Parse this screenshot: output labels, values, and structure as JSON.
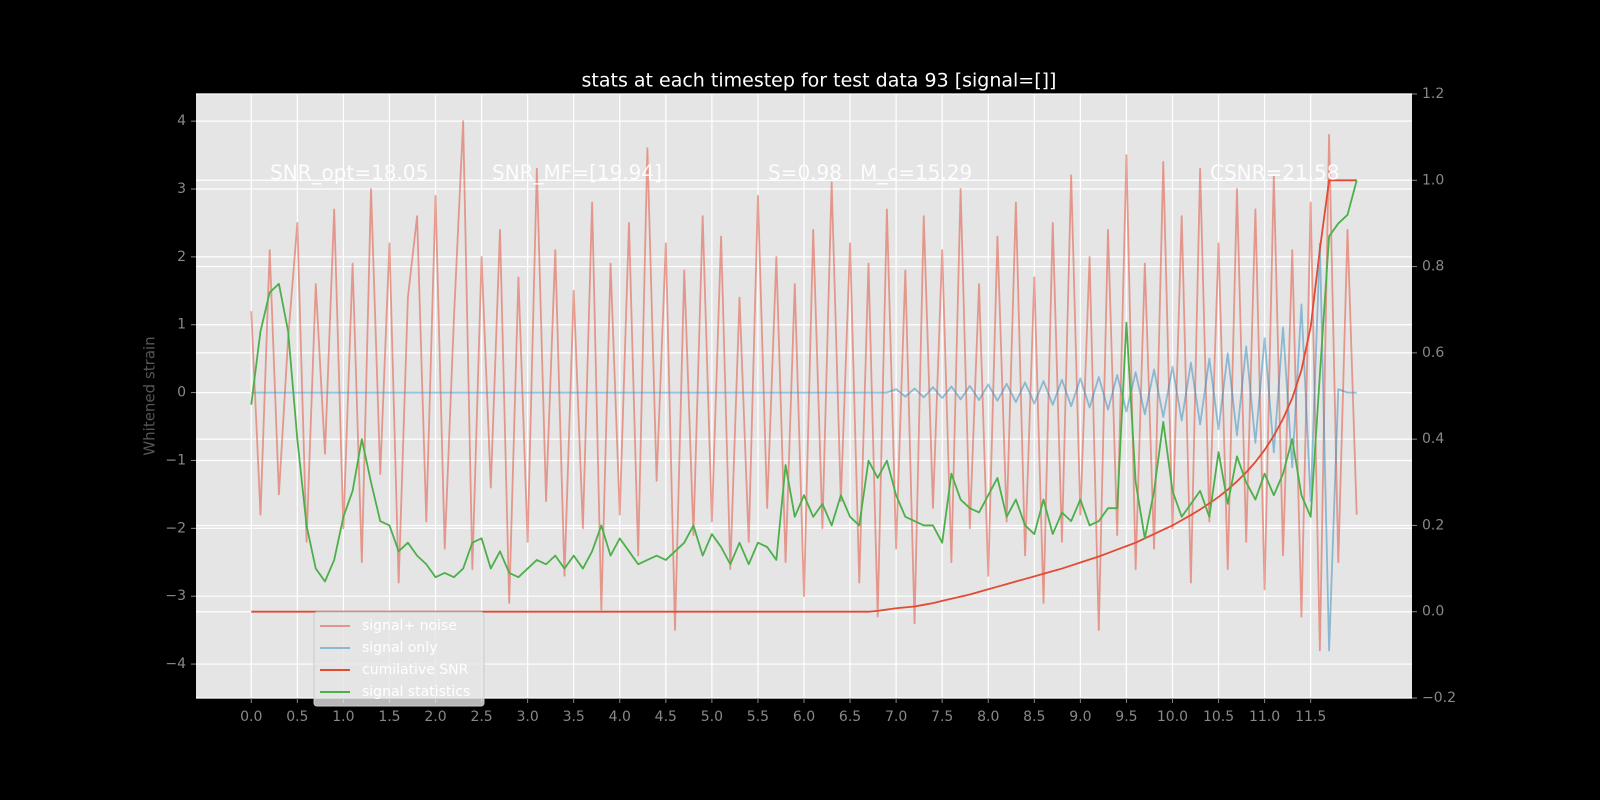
{
  "chart_data": {
    "type": "line",
    "title": "stats at each timestep for test data 93 [signal=[]]",
    "ylabel": "Whitened strain",
    "annotations": [
      "SNR_opt=18.05",
      "SNR_MF=[19.94]",
      "S=0.98",
      "M_c=15.29",
      "CSNR=21.58"
    ],
    "grid": true,
    "legend_loc": "lower left",
    "xlim": [
      -0.6,
      12.6
    ],
    "ylim": [
      -4.5,
      4.4
    ],
    "y2lim": [
      -0.2,
      1.2
    ],
    "xticks": [
      {
        "value": 0,
        "label": "0.0"
      },
      {
        "value": 0.5,
        "label": "0.5"
      },
      {
        "value": 1,
        "label": "1.0"
      },
      {
        "value": 1.5,
        "label": "1.5"
      },
      {
        "value": 2,
        "label": "2.0"
      },
      {
        "value": 2.5,
        "label": "2.5"
      },
      {
        "value": 3,
        "label": "3.0"
      },
      {
        "value": 3.5,
        "label": "3.5"
      },
      {
        "value": 4,
        "label": "4.0"
      },
      {
        "value": 4.5,
        "label": "4.5"
      },
      {
        "value": 5,
        "label": "5.0"
      },
      {
        "value": 5.5,
        "label": "5.5"
      },
      {
        "value": 6,
        "label": "6.0"
      },
      {
        "value": 6.5,
        "label": "6.5"
      },
      {
        "value": 7,
        "label": "7.0"
      },
      {
        "value": 7.5,
        "label": "7.5"
      },
      {
        "value": 8,
        "label": "8.0"
      },
      {
        "value": 8.5,
        "label": "8.5"
      },
      {
        "value": 9,
        "label": "9.0"
      },
      {
        "value": 9.5,
        "label": "9.5"
      },
      {
        "value": 10,
        "label": "10.0"
      },
      {
        "value": 10.5,
        "label": "10.5"
      },
      {
        "value": 11,
        "label": "11.0"
      },
      {
        "value": 11.5,
        "label": "11.5"
      }
    ],
    "yticks": [
      {
        "value": -4,
        "label": "−4"
      },
      {
        "value": -3,
        "label": "−3"
      },
      {
        "value": -2,
        "label": "−2"
      },
      {
        "value": -1,
        "label": "−1"
      },
      0,
      1,
      2,
      3,
      4
    ],
    "y2ticks": [
      {
        "value": -0.2,
        "label": "−0.2"
      },
      {
        "value": 0,
        "label": "0.0"
      },
      0.2,
      0.4,
      0.6,
      0.8,
      {
        "value": 1,
        "label": "1.0"
      },
      1.2
    ],
    "x": [
      0,
      0.1,
      0.2,
      0.3,
      0.4,
      0.5,
      0.6,
      0.7,
      0.8,
      0.9,
      1,
      1.1,
      1.2,
      1.3,
      1.4,
      1.5,
      1.6,
      1.7,
      1.8,
      1.9,
      2,
      2.1,
      2.2,
      2.3,
      2.4,
      2.5,
      2.6,
      2.7,
      2.8,
      2.9,
      3,
      3.1,
      3.2,
      3.3,
      3.4,
      3.5,
      3.6,
      3.7,
      3.8,
      3.9,
      4,
      4.1,
      4.2,
      4.3,
      4.4,
      4.5,
      4.6,
      4.7,
      4.8,
      4.9,
      5,
      5.1,
      5.2,
      5.3,
      5.4,
      5.5,
      5.6,
      5.7,
      5.8,
      5.9,
      6,
      6.1,
      6.2,
      6.3,
      6.4,
      6.5,
      6.6,
      6.7,
      6.8,
      6.9,
      7,
      7.1,
      7.2,
      7.3,
      7.4,
      7.5,
      7.6,
      7.7,
      7.8,
      7.9,
      8,
      8.1,
      8.2,
      8.3,
      8.4,
      8.5,
      8.6,
      8.7,
      8.8,
      8.9,
      9,
      9.1,
      9.2,
      9.3,
      9.4,
      9.5,
      9.6,
      9.7,
      9.8,
      9.9,
      10,
      10.1,
      10.2,
      10.3,
      10.4,
      10.5,
      10.6,
      10.7,
      10.8,
      10.9,
      11,
      11.1,
      11.2,
      11.3,
      11.4,
      11.5,
      11.6,
      11.7,
      11.8,
      11.9,
      12
    ],
    "series": [
      {
        "name": "signal+ noise",
        "color": "#e24a33",
        "opacity": 0.5,
        "values": [
          1.2,
          -1.8,
          2.1,
          -1.5,
          0.8,
          2.5,
          -2.2,
          1.6,
          -0.9,
          2.7,
          -2.0,
          1.9,
          -2.5,
          3.0,
          -1.2,
          2.2,
          -2.8,
          1.4,
          2.6,
          -1.9,
          2.9,
          -2.3,
          1.1,
          4.0,
          -2.6,
          2.0,
          -1.4,
          2.4,
          -3.1,
          1.7,
          -2.2,
          3.3,
          -1.6,
          2.1,
          -2.7,
          1.5,
          -2.0,
          2.8,
          -3.2,
          1.9,
          -1.8,
          2.5,
          -2.4,
          3.6,
          -1.3,
          2.2,
          -3.5,
          1.8,
          -2.1,
          2.6,
          -1.9,
          2.3,
          -2.6,
          1.4,
          -2.2,
          2.9,
          -1.7,
          2.0,
          -2.5,
          1.6,
          -3.0,
          2.4,
          -2.0,
          3.1,
          -1.6,
          2.2,
          -2.8,
          1.9,
          -3.3,
          2.7,
          -2.3,
          1.8,
          -3.4,
          2.6,
          -1.7,
          2.1,
          -2.5,
          3.0,
          -2.0,
          1.6,
          -2.7,
          2.3,
          -1.9,
          2.8,
          -2.4,
          1.7,
          -3.1,
          2.5,
          -2.2,
          3.2,
          -1.8,
          2.0,
          -3.5,
          2.4,
          -2.1,
          3.5,
          -2.6,
          1.9,
          -2.3,
          3.4,
          -2.0,
          2.6,
          -2.8,
          3.3,
          -1.9,
          2.2,
          -2.6,
          3.0,
          -2.2,
          2.7,
          -2.9,
          3.2,
          -2.4,
          2.1,
          -3.3,
          2.8,
          -3.8,
          3.8,
          -2.5,
          2.4,
          -1.8
        ]
      },
      {
        "name": "signal only",
        "color": "#348abd",
        "opacity": 0.5,
        "values": [
          0,
          0,
          0,
          0,
          0,
          0,
          0,
          0,
          0,
          0,
          0,
          0,
          0,
          0,
          0,
          0,
          0,
          0,
          0,
          0,
          0,
          0,
          0,
          0,
          0,
          0,
          0,
          0,
          0,
          0,
          0,
          0,
          0,
          0,
          0,
          0,
          0,
          0,
          0,
          0,
          0,
          0,
          0,
          0,
          0,
          0,
          0,
          0,
          0,
          0,
          0,
          0,
          0,
          0,
          0,
          0,
          0,
          0,
          0,
          0,
          0,
          0,
          0,
          0,
          0,
          0,
          0,
          0,
          0,
          0,
          0.05,
          -0.06,
          0.06,
          -0.07,
          0.08,
          -0.08,
          0.09,
          -0.1,
          0.1,
          -0.11,
          0.12,
          -0.12,
          0.13,
          -0.14,
          0.15,
          -0.16,
          0.17,
          -0.18,
          0.19,
          -0.2,
          0.21,
          -0.22,
          0.23,
          -0.25,
          0.26,
          -0.28,
          0.3,
          -0.32,
          0.34,
          -0.36,
          0.38,
          -0.41,
          0.44,
          -0.47,
          0.5,
          -0.54,
          0.58,
          -0.63,
          0.68,
          -0.74,
          0.8,
          -0.88,
          0.96,
          -1.1,
          1.3,
          -1.6,
          2.2,
          -3.8,
          0.05,
          0,
          0
        ]
      },
      {
        "name": "cumilative SNR",
        "color": "#e24a33",
        "opacity": 1,
        "axis": "y2",
        "values": [
          0,
          0,
          0,
          0,
          0,
          0,
          0,
          0,
          0,
          0,
          0,
          0,
          0,
          0,
          0,
          0,
          0,
          0,
          0,
          0,
          0,
          0,
          0,
          0,
          0,
          0,
          0,
          0,
          0,
          0,
          0,
          0,
          0,
          0,
          0,
          0,
          0,
          0,
          0,
          0,
          0,
          0,
          0,
          0,
          0,
          0,
          0,
          0,
          0,
          0,
          0,
          0,
          0,
          0,
          0,
          0,
          0,
          0,
          0,
          0,
          0,
          0,
          0,
          0,
          0,
          0,
          0,
          0,
          0.002,
          0.005,
          0.008,
          0.01,
          0.012,
          0.016,
          0.02,
          0.025,
          0.03,
          0.035,
          0.04,
          0.046,
          0.052,
          0.058,
          0.064,
          0.07,
          0.076,
          0.082,
          0.088,
          0.094,
          0.1,
          0.107,
          0.114,
          0.121,
          0.128,
          0.136,
          0.144,
          0.152,
          0.16,
          0.17,
          0.18,
          0.19,
          0.2,
          0.212,
          0.224,
          0.237,
          0.251,
          0.266,
          0.283,
          0.302,
          0.323,
          0.347,
          0.375,
          0.408,
          0.447,
          0.495,
          0.56,
          0.66,
          0.84,
          1.0,
          1.0,
          1.0,
          1.0
        ]
      },
      {
        "name": "signal statistics",
        "color": "#4daf4a",
        "opacity": 1,
        "axis": "y2",
        "values": [
          0.48,
          0.65,
          0.74,
          0.76,
          0.65,
          0.4,
          0.2,
          0.1,
          0.07,
          0.12,
          0.22,
          0.28,
          0.4,
          0.3,
          0.21,
          0.2,
          0.14,
          0.16,
          0.13,
          0.11,
          0.08,
          0.09,
          0.08,
          0.1,
          0.16,
          0.17,
          0.1,
          0.14,
          0.09,
          0.08,
          0.1,
          0.12,
          0.11,
          0.13,
          0.1,
          0.13,
          0.1,
          0.14,
          0.2,
          0.13,
          0.17,
          0.14,
          0.11,
          0.12,
          0.13,
          0.12,
          0.14,
          0.16,
          0.2,
          0.13,
          0.18,
          0.15,
          0.11,
          0.16,
          0.11,
          0.16,
          0.15,
          0.12,
          0.34,
          0.22,
          0.27,
          0.22,
          0.25,
          0.2,
          0.27,
          0.22,
          0.2,
          0.35,
          0.31,
          0.35,
          0.27,
          0.22,
          0.21,
          0.2,
          0.2,
          0.16,
          0.32,
          0.26,
          0.24,
          0.23,
          0.27,
          0.31,
          0.22,
          0.26,
          0.2,
          0.18,
          0.26,
          0.18,
          0.23,
          0.21,
          0.26,
          0.2,
          0.21,
          0.24,
          0.24,
          0.67,
          0.3,
          0.17,
          0.28,
          0.44,
          0.28,
          0.22,
          0.25,
          0.28,
          0.22,
          0.37,
          0.25,
          0.36,
          0.3,
          0.26,
          0.32,
          0.27,
          0.32,
          0.4,
          0.27,
          0.22,
          0.55,
          0.87,
          0.9,
          0.92,
          1.0
        ]
      }
    ]
  }
}
